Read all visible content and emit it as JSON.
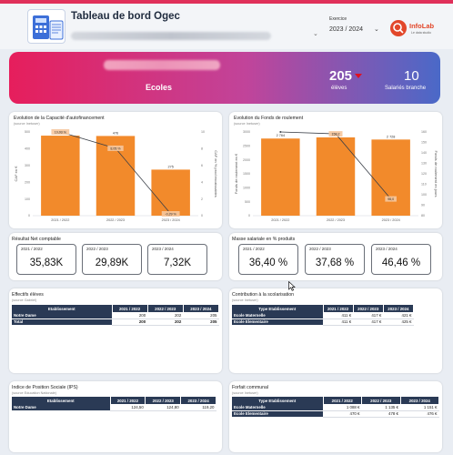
{
  "header": {
    "title": "Tableau de bord Ogec",
    "exercice_label": "Exercice",
    "exercice_value": "2023 / 2024",
    "brand_name": "InfoLab",
    "brand_tag": "Le data studio"
  },
  "banner": {
    "name": "Ecoles",
    "eleves_value": "205",
    "eleves_label": "élèves",
    "salaries_value": "10",
    "salaries_label": "Salariés branche"
  },
  "caf": {
    "title": "Evolution de la Capacité d'autofinancement",
    "source": "(source Inetuser)",
    "chart_data": {
      "type": "bar",
      "categories": [
        "2021 / 2022",
        "2022 / 2023",
        "2023 / 2024"
      ],
      "values": [
        478,
        476,
        275
      ],
      "bar_labels": [
        "478",
        "476",
        "275"
      ],
      "line_values": [
        10.03,
        8.05,
        -0.29
      ],
      "line_labels": [
        "10,03 %",
        "8,05 %",
        "-0,29 %"
      ],
      "ylabel": "CAF en €",
      "y2label": "CAF en % prod encaissables",
      "ylim": [
        0,
        500
      ],
      "y2lim": [
        0,
        10
      ],
      "colors": {
        "bar": "#f28a2b",
        "line": "#3a3f47"
      }
    }
  },
  "fdr": {
    "title": "Evolution du Fonds de roulement",
    "source": "(source Inetuser)",
    "chart_data": {
      "type": "bar",
      "categories": [
        "2021 / 2022",
        "2022 / 2023",
        "2023 / 2024"
      ],
      "values": [
        2764,
        2805,
        2728
      ],
      "bar_labels": [
        "2 764",
        "2805",
        "2 728"
      ],
      "line_values": [
        164,
        158.2,
        96
      ],
      "line_labels": [
        "",
        "158,2",
        "96,0"
      ],
      "ylabel": "Fonds de roulement en €",
      "y2label": "Fonds de roulement en jours",
      "ylim": [
        0,
        3000
      ],
      "y2lim": [
        80,
        160
      ],
      "colors": {
        "bar": "#f28a2b",
        "line": "#3a3f47"
      }
    }
  },
  "resultat": {
    "title": "Résultat Net comptable",
    "kpis": [
      {
        "period": "2021 / 2022",
        "value": "35,83K"
      },
      {
        "period": "2022 / 2023",
        "value": "29,89K"
      },
      {
        "period": "2023 / 2024",
        "value": "7,32K"
      }
    ]
  },
  "masse": {
    "title": "Masse salariale en % produits",
    "kpis": [
      {
        "period": "2021 / 2022",
        "value": "36,40 %"
      },
      {
        "period": "2022 / 2023",
        "value": "37,68 %"
      },
      {
        "period": "2023 / 2024",
        "value": "46,46 %"
      }
    ]
  },
  "effectifs": {
    "title": "Effectifs élèves",
    "source": "(source Gabriel)",
    "headers": [
      "Etablissement",
      "2021 / 2022",
      "2022 / 2023",
      "2023 / 2024"
    ],
    "rows": [
      [
        "Notre Dame",
        "200",
        "202",
        "205"
      ]
    ],
    "total": [
      "Total",
      "200",
      "202",
      "205"
    ]
  },
  "contribution": {
    "title": "Contribution à la scolarisation",
    "source": "(source Inetuser)",
    "headers": [
      "Type Etablissement",
      "2021 / 2022",
      "2022 / 2023",
      "2023 / 2024"
    ],
    "rows": [
      [
        "Ecole Maternelle",
        "411 €",
        "417 €",
        "421 €"
      ],
      [
        "Ecole Elementaire",
        "411 €",
        "417 €",
        "425 €"
      ]
    ]
  },
  "ips": {
    "title": "Indice de Position Sociale (IPS)",
    "source": "(source Education Nationale)",
    "headers": [
      "Etablissement",
      "2021 / 2022",
      "2022 / 2023",
      "2023 / 2024"
    ],
    "rows": [
      [
        "Notre Dame",
        "124,50",
        "124,80",
        "119,20"
      ]
    ]
  },
  "forfait": {
    "title": "Forfait communal",
    "source": "(source Inetuser)",
    "headers": [
      "Type Etablissement",
      "2021 / 2022",
      "2022 / 2023",
      "2023 / 2024"
    ],
    "rows": [
      [
        "Ecole Maternelle",
        "1 088 €",
        "1 135 €",
        "1 151 €"
      ],
      [
        "Ecole Elementaire",
        "470 €",
        "478 €",
        "476 €"
      ]
    ]
  }
}
